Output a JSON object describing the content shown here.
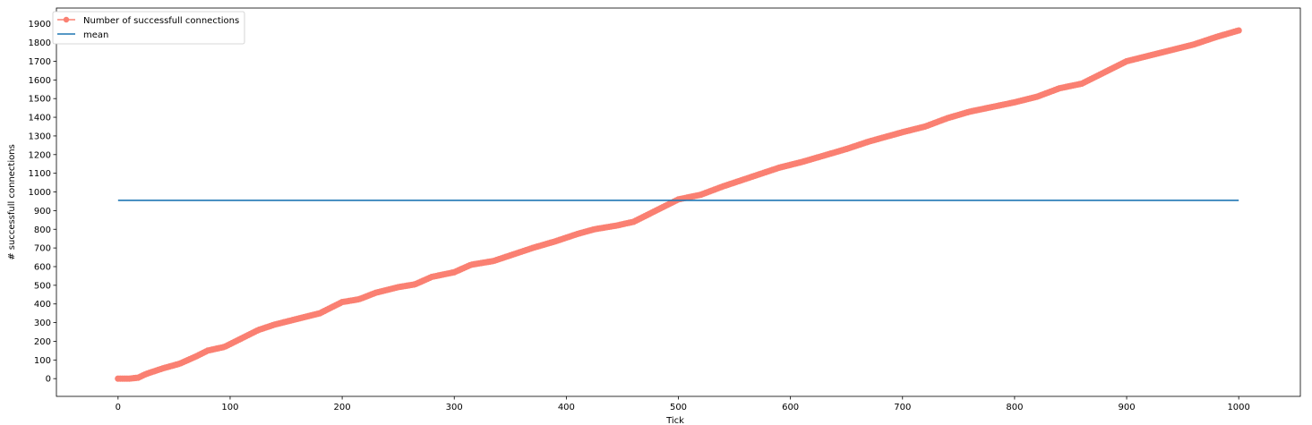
{
  "chart_data": {
    "type": "line",
    "xlabel": "Tick",
    "ylabel": "# successfull connections",
    "xlim": [
      -55,
      1055
    ],
    "ylim": [
      -95,
      1985
    ],
    "x_ticks": [
      0,
      100,
      200,
      300,
      400,
      500,
      600,
      700,
      800,
      900,
      1000
    ],
    "y_ticks": [
      0,
      100,
      200,
      300,
      400,
      500,
      600,
      700,
      800,
      900,
      1000,
      1100,
      1200,
      1300,
      1400,
      1500,
      1600,
      1700,
      1800,
      1900
    ],
    "grid": false,
    "legend": {
      "position": "upper-left"
    },
    "series": [
      {
        "name": "Number of successfull connections",
        "color": "#fa8072",
        "marker": "circle",
        "points": [
          [
            0,
            0
          ],
          [
            10,
            0
          ],
          [
            18,
            5
          ],
          [
            25,
            25
          ],
          [
            40,
            55
          ],
          [
            55,
            80
          ],
          [
            70,
            120
          ],
          [
            80,
            150
          ],
          [
            95,
            170
          ],
          [
            110,
            215
          ],
          [
            125,
            260
          ],
          [
            140,
            290
          ],
          [
            160,
            320
          ],
          [
            180,
            350
          ],
          [
            200,
            410
          ],
          [
            215,
            425
          ],
          [
            230,
            460
          ],
          [
            250,
            490
          ],
          [
            265,
            505
          ],
          [
            280,
            545
          ],
          [
            300,
            570
          ],
          [
            315,
            610
          ],
          [
            335,
            630
          ],
          [
            350,
            660
          ],
          [
            370,
            700
          ],
          [
            390,
            735
          ],
          [
            410,
            775
          ],
          [
            425,
            800
          ],
          [
            445,
            820
          ],
          [
            460,
            840
          ],
          [
            475,
            885
          ],
          [
            490,
            930
          ],
          [
            500,
            960
          ],
          [
            520,
            985
          ],
          [
            540,
            1030
          ],
          [
            555,
            1060
          ],
          [
            575,
            1100
          ],
          [
            590,
            1130
          ],
          [
            610,
            1160
          ],
          [
            630,
            1195
          ],
          [
            650,
            1230
          ],
          [
            670,
            1270
          ],
          [
            700,
            1320
          ],
          [
            720,
            1350
          ],
          [
            740,
            1395
          ],
          [
            760,
            1430
          ],
          [
            780,
            1455
          ],
          [
            800,
            1480
          ],
          [
            820,
            1510
          ],
          [
            840,
            1555
          ],
          [
            860,
            1580
          ],
          [
            880,
            1640
          ],
          [
            900,
            1700
          ],
          [
            920,
            1730
          ],
          [
            940,
            1760
          ],
          [
            960,
            1790
          ],
          [
            980,
            1830
          ],
          [
            1000,
            1865
          ]
        ]
      },
      {
        "name": "mean",
        "color": "#1f77b4",
        "points": [
          [
            0,
            955
          ],
          [
            1000,
            955
          ]
        ]
      }
    ]
  }
}
